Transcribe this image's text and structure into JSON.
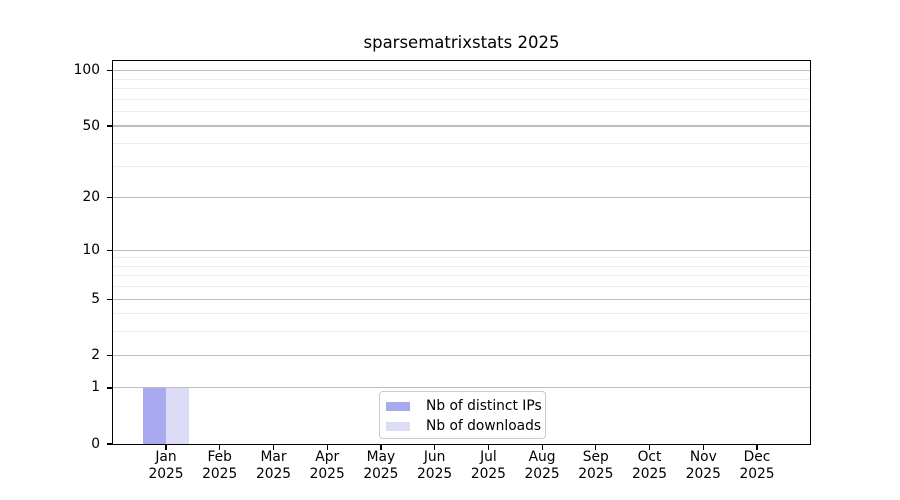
{
  "chart_data": {
    "type": "bar",
    "title": "sparsematrixstats 2025",
    "xlabel": "",
    "ylabel": "",
    "y_scale": "log1p",
    "ylim": [
      0,
      113
    ],
    "y_major_ticks": [
      0,
      1,
      2,
      5,
      10,
      20,
      50,
      100
    ],
    "y_minor_ticks": [
      3,
      4,
      6,
      7,
      8,
      9,
      30,
      40,
      60,
      70,
      80,
      90
    ],
    "grid": "horizontal",
    "categories": [
      {
        "label": "Jan",
        "sub": "2025"
      },
      {
        "label": "Feb",
        "sub": "2025"
      },
      {
        "label": "Mar",
        "sub": "2025"
      },
      {
        "label": "Apr",
        "sub": "2025"
      },
      {
        "label": "May",
        "sub": "2025"
      },
      {
        "label": "Jun",
        "sub": "2025"
      },
      {
        "label": "Jul",
        "sub": "2025"
      },
      {
        "label": "Aug",
        "sub": "2025"
      },
      {
        "label": "Sep",
        "sub": "2025"
      },
      {
        "label": "Oct",
        "sub": "2025"
      },
      {
        "label": "Nov",
        "sub": "2025"
      },
      {
        "label": "Dec",
        "sub": "2025"
      }
    ],
    "series": [
      {
        "name": "Nb of distinct IPs",
        "color": "#a9a9f0",
        "values": [
          1,
          0,
          0,
          0,
          0,
          0,
          0,
          0,
          0,
          0,
          0,
          0
        ]
      },
      {
        "name": "Nb of downloads",
        "color": "#dcdcf7",
        "values": [
          1,
          0,
          0,
          0,
          0,
          0,
          0,
          0,
          0,
          0,
          0,
          0
        ]
      }
    ],
    "legend_position": "lower center",
    "colors": {
      "major_grid": "#bdbdbd",
      "minor_grid": "#ededed",
      "frame": "#000000",
      "legend_border": "#cbcbcb"
    }
  }
}
